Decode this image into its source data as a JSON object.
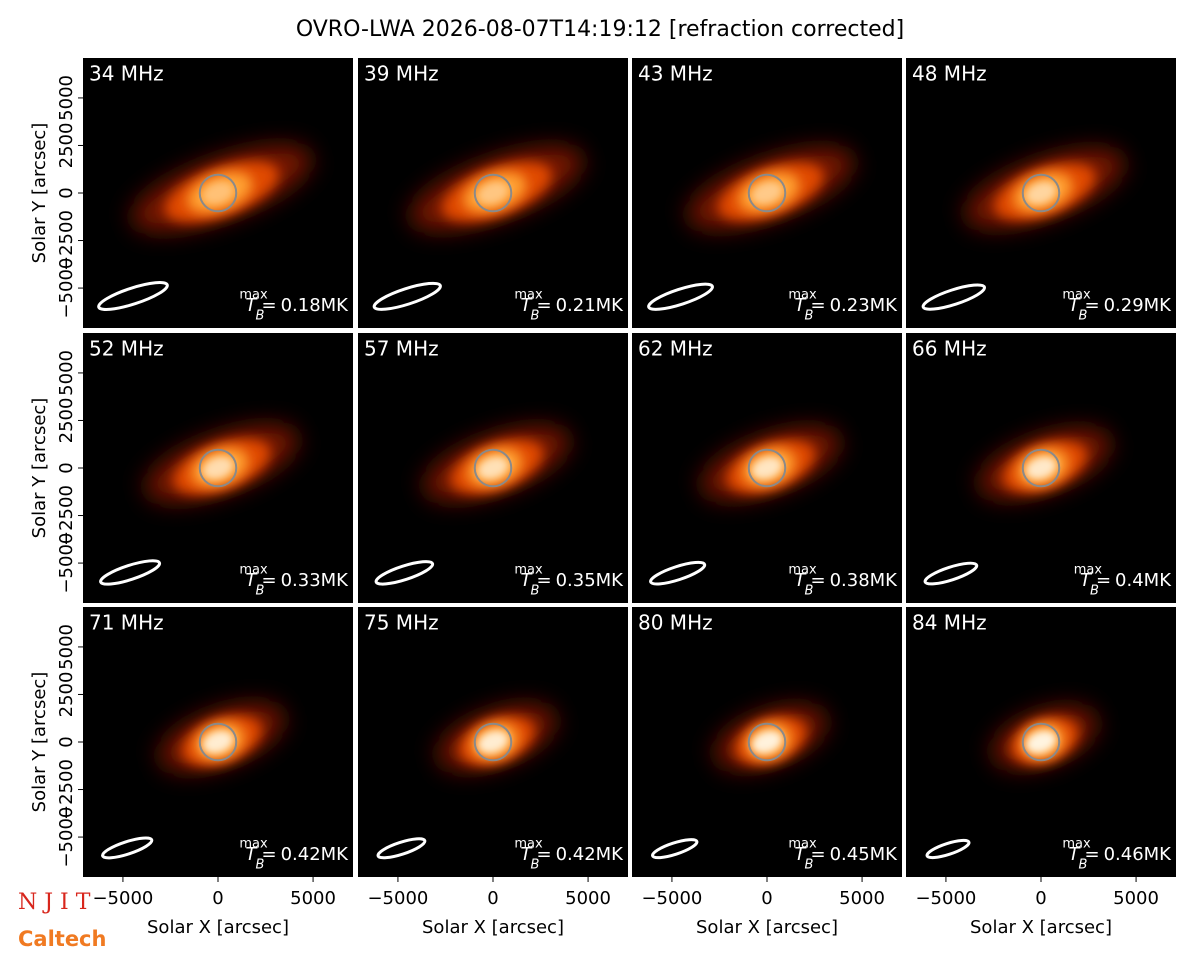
{
  "chart_data": {
    "type": "image-grid",
    "title": "OVRO-LWA 2026-08-07T14:19:12 [refraction corrected]",
    "xlabel": "Solar X [arcsec]",
    "ylabel": "Solar Y [arcsec]",
    "xlim": [
      -7100,
      7100
    ],
    "ylim": [
      -7100,
      7100
    ],
    "xticks": [
      {
        "value": -5000,
        "label": "−5000"
      },
      0,
      5000
    ],
    "yticks": [
      {
        "value": -5000,
        "label": "−5000"
      },
      {
        "value": -2500,
        "label": "−2500"
      },
      0,
      2500,
      5000
    ],
    "categories": [
      "34 MHz",
      "39 MHz",
      "43 MHz",
      "48 MHz",
      "52 MHz",
      "57 MHz",
      "62 MHz",
      "66 MHz",
      "71 MHz",
      "75 MHz",
      "80 MHz",
      "84 MHz"
    ],
    "tb_symbol": "T",
    "tb_sub": "B",
    "tb_sup": "max",
    "tb_eq": "=",
    "values": [
      0.18,
      0.21,
      0.23,
      0.29,
      0.33,
      0.35,
      0.38,
      0.4,
      0.42,
      0.42,
      0.45,
      0.46
    ],
    "value_labels": [
      "0.18MK",
      "0.21MK",
      "0.23MK",
      "0.29MK",
      "0.33MK",
      "0.35MK",
      "0.38MK",
      "0.4MK",
      "0.42MK",
      "0.42MK",
      "0.45MK",
      "0.46MK"
    ],
    "colormap": "hot"
  },
  "logos": [
    "N J I T",
    "Caltech"
  ]
}
